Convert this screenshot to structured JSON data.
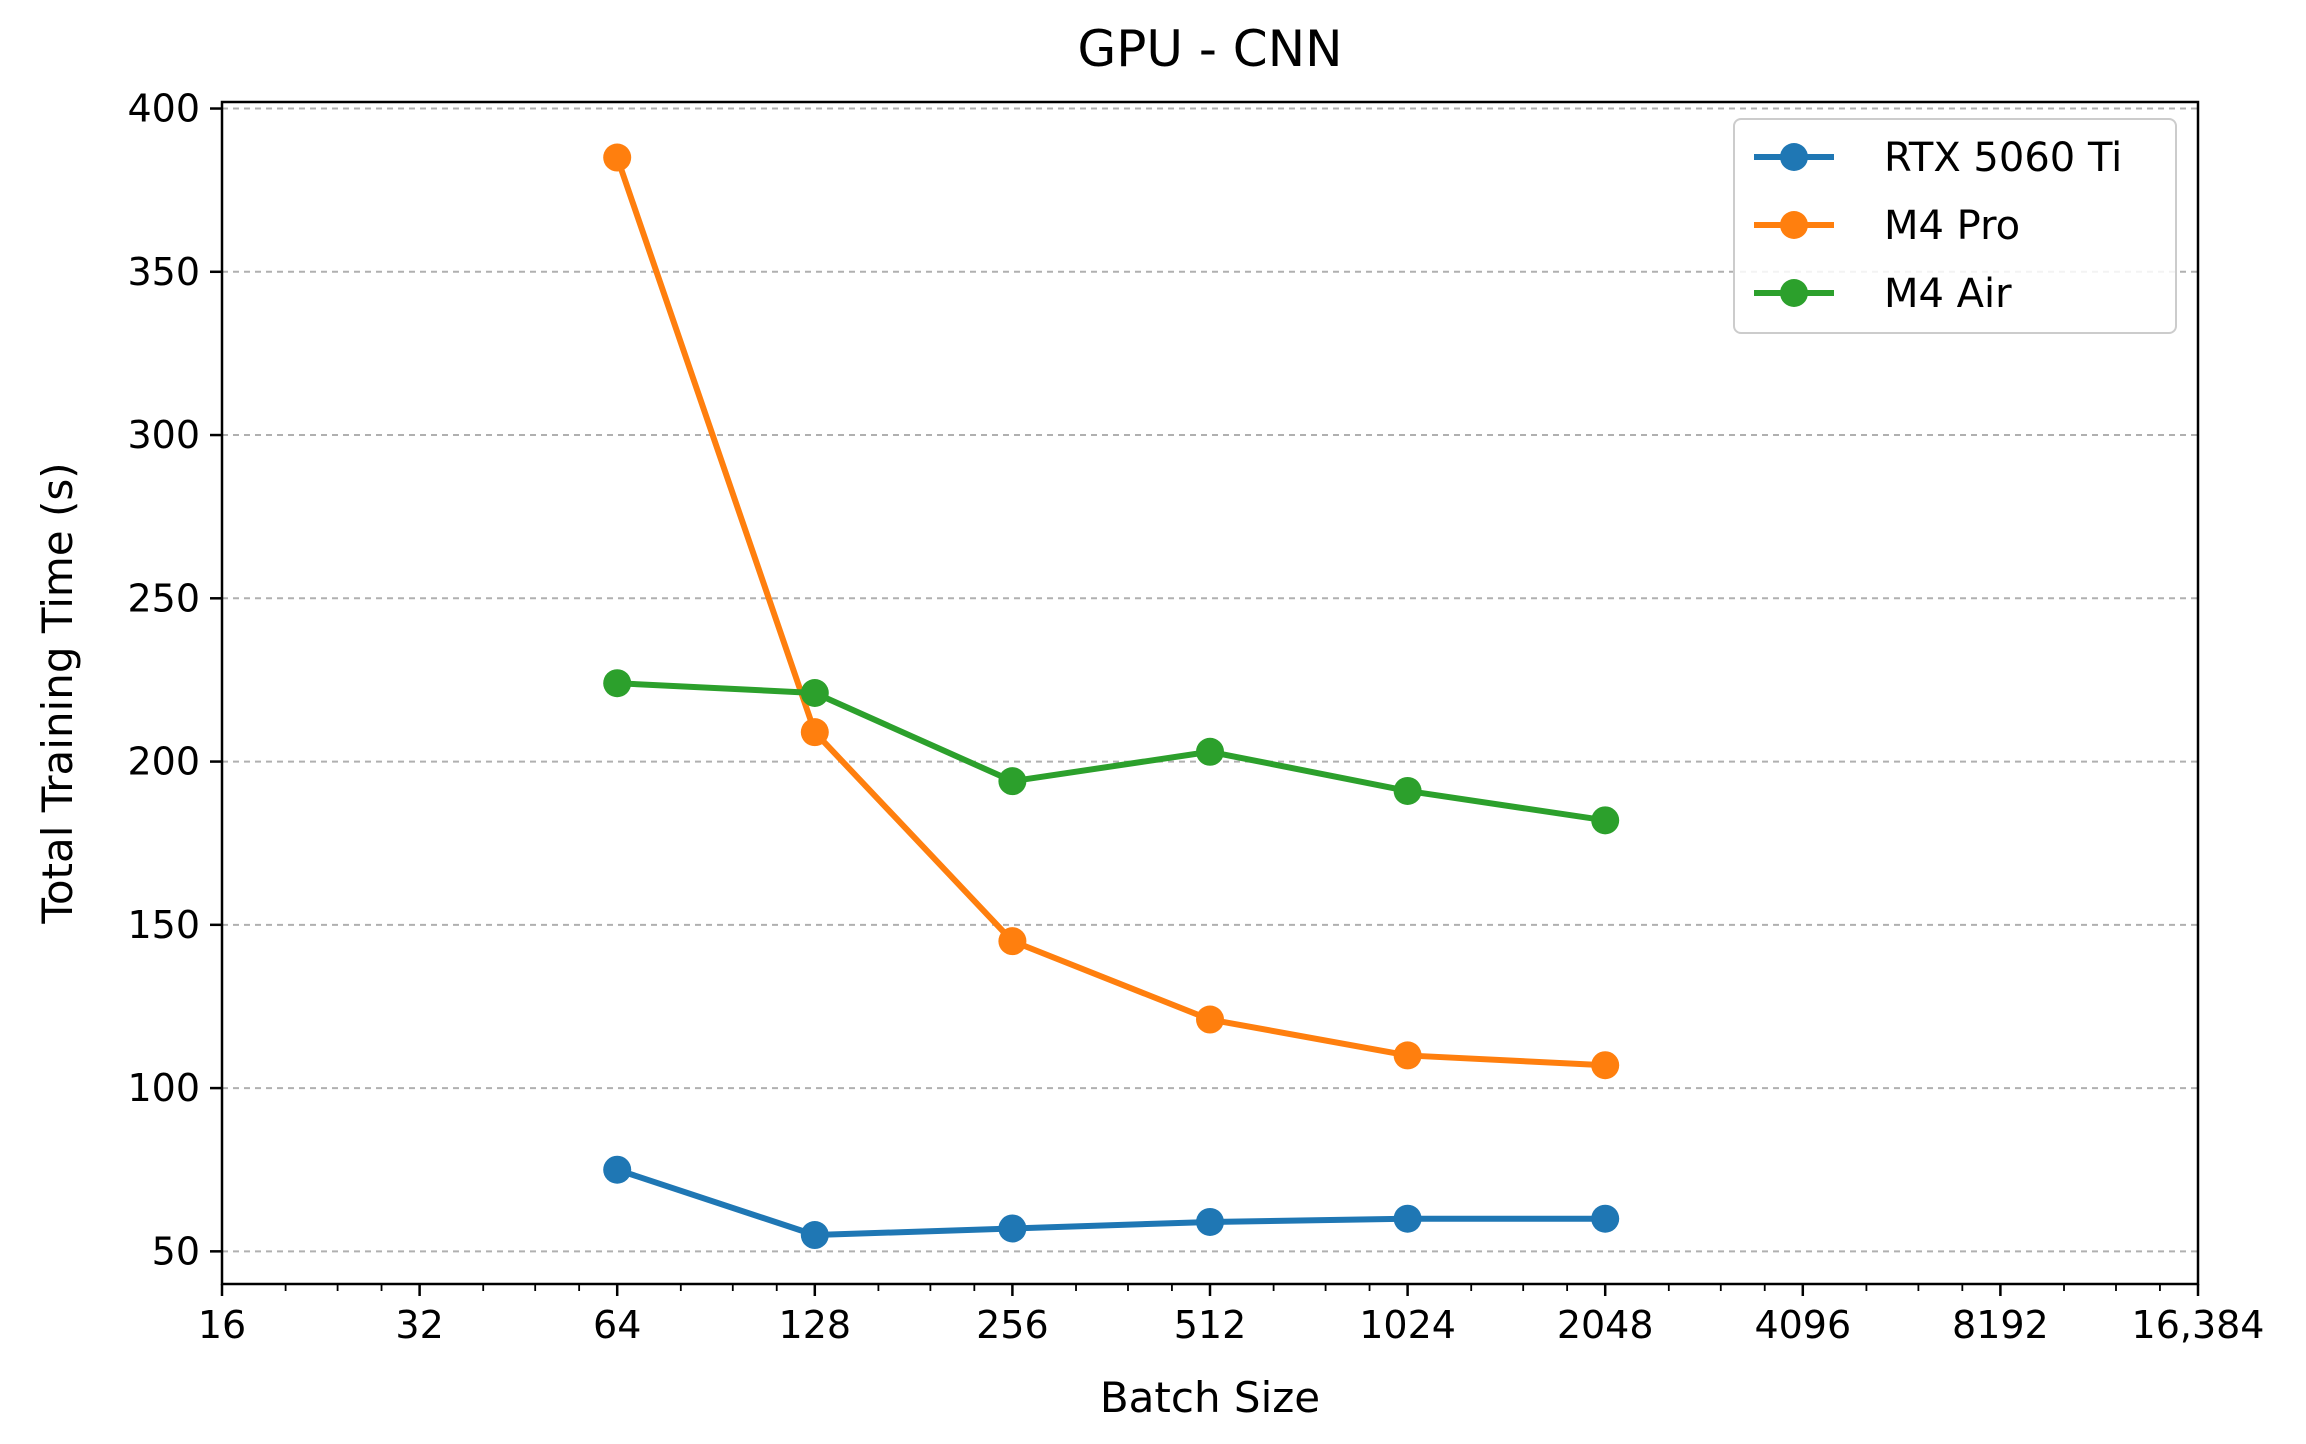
{
  "chart_data": {
    "type": "line",
    "title": "GPU - CNN",
    "xlabel": "Batch Size",
    "ylabel": "Total Training Time (s)",
    "x_scale": "log2",
    "xlim": [
      16,
      16384
    ],
    "ylim": [
      40,
      402
    ],
    "x": [
      64,
      128,
      256,
      512,
      1024,
      2048
    ],
    "x_ticks": [
      16,
      32,
      64,
      128,
      256,
      512,
      1024,
      2048,
      4096,
      8192,
      16384
    ],
    "x_tick_labels": [
      "16",
      "32",
      "64",
      "128",
      "256",
      "512",
      "1024",
      "2048",
      "4096",
      "8192",
      "16,384"
    ],
    "y_ticks": [
      50,
      100,
      150,
      200,
      250,
      300,
      350,
      400
    ],
    "y_tick_labels": [
      "50",
      "100",
      "150",
      "200",
      "250",
      "300",
      "350",
      "400"
    ],
    "grid": "y-dashed",
    "legend_position": "top-right",
    "series": [
      {
        "name": "RTX 5060 Ti",
        "color": "#1f77b4",
        "values": [
          75,
          55,
          57,
          59,
          60,
          60
        ]
      },
      {
        "name": "M4 Pro",
        "color": "#ff7f0e",
        "values": [
          385,
          209,
          145,
          121,
          110,
          107
        ]
      },
      {
        "name": "M4 Air",
        "color": "#2ca02c",
        "values": [
          224,
          221,
          194,
          203,
          191,
          182
        ]
      }
    ]
  }
}
